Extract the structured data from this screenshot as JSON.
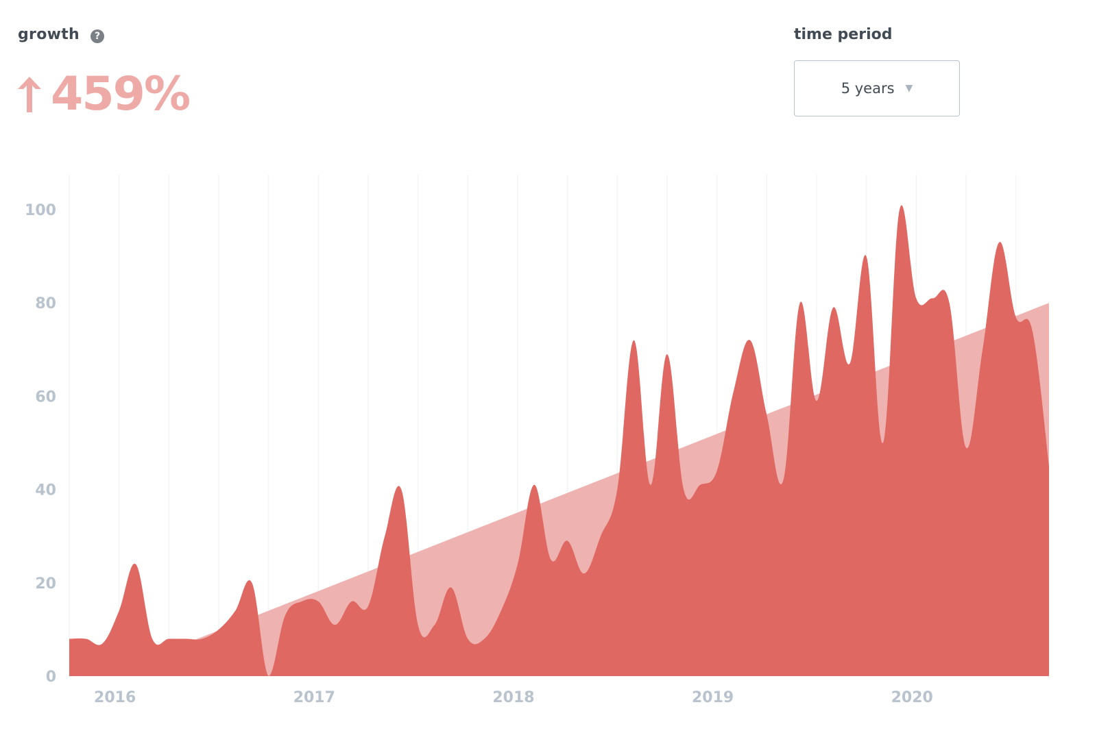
{
  "header": {
    "growth_label": "growth",
    "growth_value": "459%",
    "growth_direction": "up",
    "help_icon": "question-circle-icon",
    "time_period_label": "time period",
    "time_period_selected": "5 years"
  },
  "colors": {
    "actual_series": "#e06862",
    "trend_series": "#eeb3b0",
    "growth_text": "#eeaaa6",
    "axis_labels": "#b8c3ce"
  },
  "chart_data": {
    "type": "area",
    "title": "",
    "xlabel": "",
    "ylabel": "",
    "ylim": [
      0,
      100
    ],
    "yticks": [
      "0",
      "20",
      "40",
      "60",
      "80",
      "100"
    ],
    "xticks": [
      "2016",
      "2017",
      "2018",
      "2019",
      "2020"
    ],
    "grid": "vertical",
    "series": [
      {
        "points": [
          [
            "2015-11",
            8
          ],
          [
            "2015-12",
            8
          ],
          [
            "2016-01",
            7
          ],
          [
            "2016-02",
            14
          ],
          [
            "2016-03",
            24
          ],
          [
            "2016-04",
            8
          ],
          [
            "2016-05",
            8
          ],
          [
            "2016-06",
            8
          ],
          [
            "2016-07",
            8
          ],
          [
            "2016-08",
            10
          ],
          [
            "2016-09",
            14
          ],
          [
            "2016-10",
            20
          ],
          [
            "2016-11",
            0
          ],
          [
            "2016-12",
            13
          ],
          [
            "2017-01",
            16
          ],
          [
            "2017-02",
            16
          ],
          [
            "2017-03",
            11
          ],
          [
            "2017-04",
            16
          ],
          [
            "2017-05",
            15
          ],
          [
            "2017-06",
            30
          ],
          [
            "2017-07",
            40
          ],
          [
            "2017-08",
            11
          ],
          [
            "2017-09",
            11
          ],
          [
            "2017-10",
            19
          ],
          [
            "2017-11",
            8
          ],
          [
            "2017-12",
            8
          ],
          [
            "2018-01",
            14
          ],
          [
            "2018-02",
            24
          ],
          [
            "2018-03",
            41
          ],
          [
            "2018-04",
            25
          ],
          [
            "2018-05",
            29
          ],
          [
            "2018-06",
            22
          ],
          [
            "2018-07",
            30
          ],
          [
            "2018-08",
            40
          ],
          [
            "2018-09",
            72
          ],
          [
            "2018-10",
            41
          ],
          [
            "2018-11",
            69
          ],
          [
            "2018-12",
            40
          ],
          [
            "2019-01",
            41
          ],
          [
            "2019-02",
            44
          ],
          [
            "2019-03",
            61
          ],
          [
            "2019-04",
            72
          ],
          [
            "2019-05",
            56
          ],
          [
            "2019-06",
            42
          ],
          [
            "2019-07",
            80
          ],
          [
            "2019-08",
            59
          ],
          [
            "2019-09",
            79
          ],
          [
            "2019-10",
            67
          ],
          [
            "2019-11",
            90
          ],
          [
            "2019-12",
            50
          ],
          [
            "2020-01",
            100
          ],
          [
            "2020-02",
            81
          ],
          [
            "2020-03",
            81
          ],
          [
            "2020-04",
            80
          ],
          [
            "2020-05",
            49
          ],
          [
            "2020-06",
            70
          ],
          [
            "2020-07",
            93
          ],
          [
            "2020-08",
            77
          ],
          [
            "2020-09",
            74
          ],
          [
            "2020-10",
            45
          ]
        ]
      },
      {
        "points": [
          [
            "2015-11",
            0
          ],
          [
            "2016-06",
            7
          ],
          [
            "2020-10",
            80
          ]
        ]
      }
    ]
  }
}
